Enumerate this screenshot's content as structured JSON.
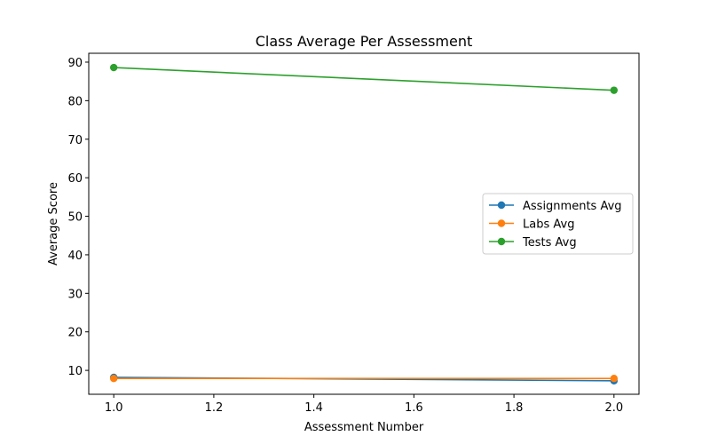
{
  "chart_data": {
    "type": "line",
    "title": "Class Average Per Assessment",
    "xlabel": "Assessment Number",
    "ylabel": "Average Score",
    "x": [
      1.0,
      2.0
    ],
    "xlim": [
      0.95,
      2.05
    ],
    "ylim": [
      3.8,
      92.3
    ],
    "xticks": [
      1.0,
      1.2,
      1.4,
      1.6,
      1.8,
      2.0
    ],
    "xtick_labels": [
      "1.0",
      "1.2",
      "1.4",
      "1.6",
      "1.8",
      "2.0"
    ],
    "yticks": [
      10,
      20,
      30,
      40,
      50,
      60,
      70,
      80,
      90
    ],
    "ytick_labels": [
      "10",
      "20",
      "30",
      "40",
      "50",
      "60",
      "70",
      "80",
      "90"
    ],
    "grid": false,
    "legend_position": "center-right",
    "series": [
      {
        "name": "Assignments Avg",
        "color": "#1f77b4",
        "values": [
          8.2,
          7.3
        ]
      },
      {
        "name": "Labs Avg",
        "color": "#ff7f0e",
        "values": [
          7.9,
          7.9
        ]
      },
      {
        "name": "Tests Avg",
        "color": "#2ca02c",
        "values": [
          88.6,
          82.7
        ]
      }
    ]
  }
}
